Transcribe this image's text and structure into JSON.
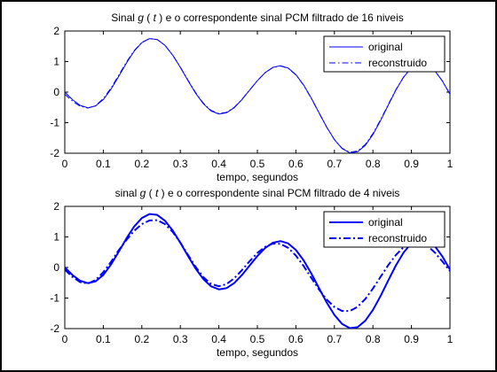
{
  "figure": {
    "background": "#000000",
    "panel_background": "#ffffff",
    "line_color": "#0000ff"
  },
  "chart_data": [
    {
      "type": "line",
      "title_parts": [
        "Sinal ",
        "g",
        " ( ",
        "t",
        " ) e o correspondente sinal PCM filtrado de 16 niveis"
      ],
      "xlabel": "tempo, segundos",
      "ylabel": "",
      "xlim": [
        0,
        1
      ],
      "ylim": [
        -2,
        2
      ],
      "xticks": [
        0,
        0.1,
        0.2,
        0.3,
        0.4,
        0.5,
        0.6,
        0.7,
        0.8,
        0.9,
        1
      ],
      "yticks": [
        -2,
        -1,
        0,
        1,
        2
      ],
      "xtick_labels": [
        "0",
        "0.1",
        "0.2",
        "0.3",
        "0.4",
        "0.5",
        "0.6",
        "0.7",
        "0.8",
        "0.9",
        "1"
      ],
      "ytick_labels": [
        "-2",
        "-1",
        "0",
        "1",
        "2"
      ],
      "grid": false,
      "legend_position": "top-right",
      "series": [
        {
          "name": "original",
          "style": "solid",
          "x": [
            0.0,
            0.02,
            0.04,
            0.06,
            0.08,
            0.1,
            0.12,
            0.14,
            0.16,
            0.18,
            0.2,
            0.22,
            0.24,
            0.26,
            0.28,
            0.3,
            0.32,
            0.34,
            0.36,
            0.38,
            0.4,
            0.42,
            0.44,
            0.46,
            0.48,
            0.5,
            0.52,
            0.54,
            0.56,
            0.58,
            0.6,
            0.62,
            0.64,
            0.66,
            0.68,
            0.7,
            0.72,
            0.74,
            0.76,
            0.78,
            0.8,
            0.82,
            0.84,
            0.86,
            0.88,
            0.9,
            0.92,
            0.94,
            0.96,
            0.98,
            1.0
          ],
          "y": [
            0.0,
            -0.247,
            -0.435,
            -0.514,
            -0.453,
            -0.244,
            0.096,
            0.515,
            0.951,
            1.338,
            1.618,
            1.751,
            1.72,
            1.531,
            1.213,
            0.809,
            0.374,
            -0.042,
            -0.386,
            -0.619,
            -0.717,
            -0.675,
            -0.508,
            -0.246,
            0.066,
            0.375,
            0.635,
            0.808,
            0.864,
            0.787,
            0.573,
            0.235,
            -0.196,
            -0.674,
            -1.146,
            -1.555,
            -1.848,
            -1.987,
            -1.952,
            -1.745,
            -1.389,
            -0.929,
            -0.42,
            0.076,
            0.496,
            0.793,
            0.934,
            0.905,
            0.709,
            0.37,
            -0.071
          ]
        },
        {
          "name": "reconstruido",
          "style": "dashdot",
          "x": [
            0.0,
            0.02,
            0.04,
            0.06,
            0.08,
            0.1,
            0.12,
            0.14,
            0.16,
            0.18,
            0.2,
            0.22,
            0.24,
            0.26,
            0.28,
            0.3,
            0.32,
            0.34,
            0.36,
            0.38,
            0.4,
            0.42,
            0.44,
            0.46,
            0.48,
            0.5,
            0.52,
            0.54,
            0.56,
            0.58,
            0.6,
            0.62,
            0.64,
            0.66,
            0.68,
            0.7,
            0.72,
            0.74,
            0.76,
            0.78,
            0.8,
            0.82,
            0.84,
            0.86,
            0.88,
            0.9,
            0.92,
            0.94,
            0.96,
            0.98,
            1.0
          ],
          "y": [
            -0.07,
            -0.296,
            -0.463,
            -0.523,
            -0.442,
            -0.214,
            0.134,
            0.554,
            0.981,
            1.357,
            1.627,
            1.754,
            1.72,
            1.531,
            1.216,
            0.818,
            0.389,
            -0.023,
            -0.367,
            -0.601,
            -0.702,
            -0.661,
            -0.496,
            -0.236,
            0.073,
            0.378,
            0.634,
            0.803,
            0.856,
            0.778,
            0.563,
            0.226,
            -0.205,
            -0.681,
            -1.151,
            -1.554,
            -1.839,
            -1.969,
            -1.928,
            -1.715,
            -1.357,
            -0.9,
            -0.399,
            0.089,
            0.503,
            0.795,
            0.932,
            0.902,
            0.708,
            0.373,
            -0.062
          ]
        }
      ]
    },
    {
      "type": "line",
      "title_parts": [
        "sinal ",
        "g",
        " ( ",
        "t",
        " ) e o correspondente sinal PCM filtrado de 4 niveis"
      ],
      "xlabel": "tempo, segundos",
      "ylabel": "",
      "xlim": [
        0,
        1
      ],
      "ylim": [
        -2,
        2
      ],
      "xticks": [
        0,
        0.1,
        0.2,
        0.3,
        0.4,
        0.5,
        0.6,
        0.7,
        0.8,
        0.9,
        1
      ],
      "yticks": [
        -2,
        -1,
        0,
        1,
        2
      ],
      "xtick_labels": [
        "0",
        "0.1",
        "0.2",
        "0.3",
        "0.4",
        "0.5",
        "0.6",
        "0.7",
        "0.8",
        "0.9",
        "1"
      ],
      "ytick_labels": [
        "-2",
        "-1",
        "0",
        "1",
        "2"
      ],
      "grid": false,
      "legend_position": "top-right",
      "series": [
        {
          "name": "original",
          "style": "solid-bold",
          "x": [
            0.0,
            0.02,
            0.04,
            0.06,
            0.08,
            0.1,
            0.12,
            0.14,
            0.16,
            0.18,
            0.2,
            0.22,
            0.24,
            0.26,
            0.28,
            0.3,
            0.32,
            0.34,
            0.36,
            0.38,
            0.4,
            0.42,
            0.44,
            0.46,
            0.48,
            0.5,
            0.52,
            0.54,
            0.56,
            0.58,
            0.6,
            0.62,
            0.64,
            0.66,
            0.68,
            0.7,
            0.72,
            0.74,
            0.76,
            0.78,
            0.8,
            0.82,
            0.84,
            0.86,
            0.88,
            0.9,
            0.92,
            0.94,
            0.96,
            0.98,
            1.0
          ],
          "y": [
            0.0,
            -0.247,
            -0.435,
            -0.514,
            -0.453,
            -0.244,
            0.096,
            0.515,
            0.951,
            1.338,
            1.618,
            1.751,
            1.72,
            1.531,
            1.213,
            0.809,
            0.374,
            -0.042,
            -0.386,
            -0.619,
            -0.717,
            -0.675,
            -0.508,
            -0.246,
            0.066,
            0.375,
            0.635,
            0.808,
            0.864,
            0.787,
            0.573,
            0.235,
            -0.196,
            -0.674,
            -1.146,
            -1.555,
            -1.848,
            -1.987,
            -1.952,
            -1.745,
            -1.389,
            -0.929,
            -0.42,
            0.076,
            0.496,
            0.793,
            0.934,
            0.905,
            0.709,
            0.37,
            -0.071
          ]
        },
        {
          "name": "reconstruido",
          "style": "dashdot-bold",
          "x": [
            0.0,
            0.02,
            0.04,
            0.06,
            0.08,
            0.1,
            0.12,
            0.14,
            0.16,
            0.18,
            0.2,
            0.22,
            0.24,
            0.26,
            0.28,
            0.3,
            0.32,
            0.34,
            0.36,
            0.38,
            0.4,
            0.42,
            0.44,
            0.46,
            0.48,
            0.5,
            0.52,
            0.54,
            0.56,
            0.58,
            0.6,
            0.62,
            0.64,
            0.66,
            0.68,
            0.7,
            0.72,
            0.74,
            0.76,
            0.78,
            0.8,
            0.82,
            0.84,
            0.86,
            0.88,
            0.9,
            0.92,
            0.94,
            0.96,
            0.98,
            1.0
          ],
          "y": [
            -0.07,
            -0.313,
            -0.48,
            -0.524,
            -0.41,
            -0.153,
            0.183,
            0.564,
            0.9,
            1.196,
            1.419,
            1.541,
            1.548,
            1.42,
            1.166,
            0.813,
            0.41,
            0.014,
            -0.32,
            -0.54,
            -0.614,
            -0.542,
            -0.353,
            -0.085,
            0.207,
            0.476,
            0.676,
            0.782,
            0.774,
            0.642,
            0.39,
            0.048,
            -0.34,
            -0.722,
            -1.049,
            -1.293,
            -1.424,
            -1.425,
            -1.29,
            -1.034,
            -0.69,
            -0.303,
            0.081,
            0.415,
            0.668,
            0.812,
            0.83,
            0.72,
            0.498,
            0.203,
            -0.117
          ]
        }
      ]
    }
  ]
}
